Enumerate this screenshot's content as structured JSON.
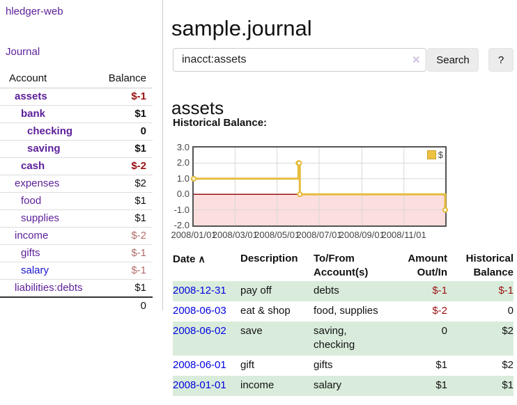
{
  "app": {
    "brand": "hledger-web",
    "nav": {
      "journal": "Journal"
    }
  },
  "colors": {
    "link_purple": "#5c1f99",
    "link_blue": "#0000e0",
    "negative_strong": "#991111",
    "negative_soft": "#b36d6d",
    "row_stripe_green": "#d9ecdb",
    "series_gold": "#edc240"
  },
  "sidebar": {
    "header": {
      "account": "Account",
      "balance": "Balance"
    },
    "accounts": [
      {
        "name": "assets",
        "balance": "$-1"
      },
      {
        "name": "bank",
        "balance": "$1"
      },
      {
        "name": "checking",
        "balance": "0"
      },
      {
        "name": "saving",
        "balance": "$1"
      },
      {
        "name": "cash",
        "balance": "$-2"
      },
      {
        "name": "expenses",
        "balance": "$2"
      },
      {
        "name": "food",
        "balance": "$1"
      },
      {
        "name": "supplies",
        "balance": "$1"
      },
      {
        "name": "income",
        "balance": "$-2"
      },
      {
        "name": "gifts",
        "balance": "$-1"
      },
      {
        "name": "salary",
        "balance": "$-1"
      },
      {
        "name": "liabilities:debts",
        "balance": "$1"
      }
    ],
    "total": "0"
  },
  "main": {
    "title": "sample.journal",
    "search": {
      "value": "inacct:assets",
      "clear_icon": "✕",
      "search_button": "Search",
      "help_button": "?"
    },
    "account_heading": "assets",
    "chart_label": "Historical Balance:"
  },
  "chart_data": {
    "type": "line",
    "step": true,
    "title": "Historical Balance",
    "legend_label": "$",
    "legend_position": "top-right",
    "grid": true,
    "series": [
      {
        "name": "$",
        "points": [
          [
            "2008-01-01",
            1
          ],
          [
            "2008-06-01",
            2
          ],
          [
            "2008-06-02",
            2
          ],
          [
            "2008-06-03",
            0
          ],
          [
            "2008-12-31",
            -1
          ]
        ]
      }
    ],
    "xrange": [
      "2008-01-01",
      "2008-12-31"
    ],
    "ylim": [
      -2,
      3
    ],
    "yticks": [
      3,
      2,
      1,
      0,
      -1,
      -2
    ],
    "ytick_labels": [
      "3.0",
      "2.0",
      "1.0",
      "0.0",
      "-1.0",
      "-2.0"
    ],
    "xticks": [
      "2008-01-01",
      "2008-03-01",
      "2008-05-01",
      "2008-07-01",
      "2008-09-01",
      "2008-11-01"
    ],
    "xtick_labels": [
      "2008/01/01",
      "2008/03/01",
      "2008/05/01",
      "2008/07/01",
      "2008/09/01",
      "2008/11/01"
    ],
    "colors": {
      "line": "#e6bc3e",
      "marker_fill": "#ffffff",
      "negative_fill": "#fcdede",
      "zero_line": "#991111",
      "gridline": "#d8d8d8",
      "border": "#545454"
    }
  },
  "table": {
    "headers": {
      "date": "Date",
      "sort_icon": "∧",
      "description": "Description",
      "tofrom": "To/From\nAccount(s)",
      "amount": "Amount\nOut/In",
      "historical": "Historical\nBalance"
    },
    "rows": [
      {
        "date": "2008-12-31",
        "description": "pay off",
        "accounts": "debts",
        "amount": "$-1",
        "balance": "$-1"
      },
      {
        "date": "2008-06-03",
        "description": "eat & shop",
        "accounts": "food, supplies",
        "amount": "$-2",
        "balance": "0"
      },
      {
        "date": "2008-06-02",
        "description": "save",
        "accounts": "saving, checking",
        "amount": "0",
        "balance": "$2"
      },
      {
        "date": "2008-06-01",
        "description": "gift",
        "accounts": "gifts",
        "amount": "$1",
        "balance": "$2"
      },
      {
        "date": "2008-01-01",
        "description": "income",
        "accounts": "salary",
        "amount": "$1",
        "balance": "$1"
      }
    ]
  }
}
